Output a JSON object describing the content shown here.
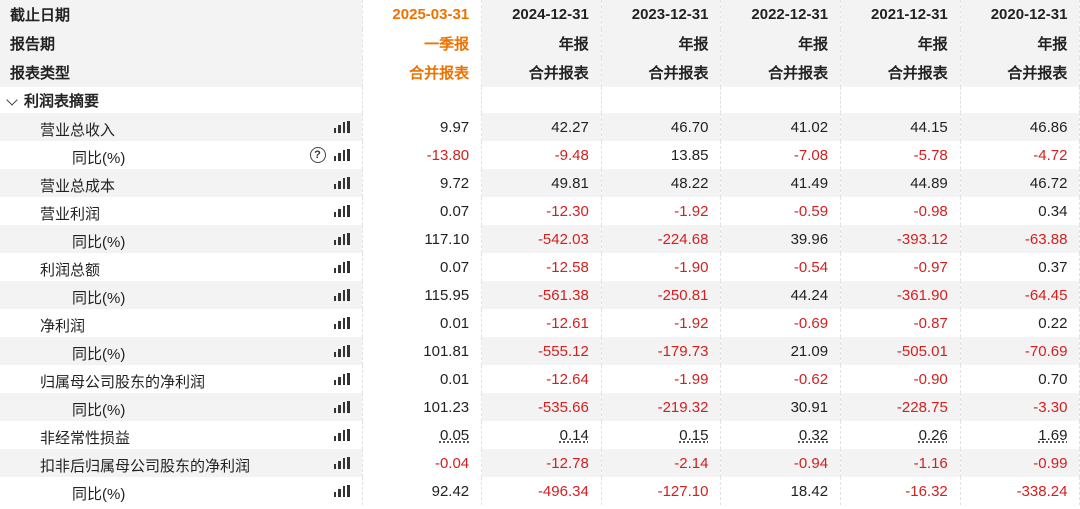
{
  "header": {
    "rows": [
      {
        "label": "截止日期",
        "values": [
          "2025-03-31",
          "2024-12-31",
          "2023-12-31",
          "2022-12-31",
          "2021-12-31",
          "2020-12-31"
        ]
      },
      {
        "label": "报告期",
        "values": [
          "一季报",
          "年报",
          "年报",
          "年报",
          "年报",
          "年报"
        ]
      },
      {
        "label": "报表类型",
        "values": [
          "合并报表",
          "合并报表",
          "合并报表",
          "合并报表",
          "合并报表",
          "合并报表"
        ]
      }
    ],
    "highlight_color": "#ee7200"
  },
  "section": {
    "title": "利润表摘要",
    "expanded": true
  },
  "rows": [
    {
      "label": "营业总收入",
      "level": 1,
      "help": false,
      "values": [
        "9.97",
        "42.27",
        "46.70",
        "41.02",
        "44.15",
        "46.86"
      ]
    },
    {
      "label": "同比(%)",
      "level": 2,
      "help": true,
      "values": [
        "-13.80",
        "-9.48",
        "13.85",
        "-7.08",
        "-5.78",
        "-4.72"
      ]
    },
    {
      "label": "营业总成本",
      "level": 1,
      "help": false,
      "values": [
        "9.72",
        "49.81",
        "48.22",
        "41.49",
        "44.89",
        "46.72"
      ]
    },
    {
      "label": "营业利润",
      "level": 1,
      "help": false,
      "values": [
        "0.07",
        "-12.30",
        "-1.92",
        "-0.59",
        "-0.98",
        "0.34"
      ]
    },
    {
      "label": "同比(%)",
      "level": 2,
      "help": false,
      "values": [
        "117.10",
        "-542.03",
        "-224.68",
        "39.96",
        "-393.12",
        "-63.88"
      ]
    },
    {
      "label": "利润总额",
      "level": 1,
      "help": false,
      "values": [
        "0.07",
        "-12.58",
        "-1.90",
        "-0.54",
        "-0.97",
        "0.37"
      ]
    },
    {
      "label": "同比(%)",
      "level": 2,
      "help": false,
      "values": [
        "115.95",
        "-561.38",
        "-250.81",
        "44.24",
        "-361.90",
        "-64.45"
      ]
    },
    {
      "label": "净利润",
      "level": 1,
      "help": false,
      "values": [
        "0.01",
        "-12.61",
        "-1.92",
        "-0.69",
        "-0.87",
        "0.22"
      ]
    },
    {
      "label": "同比(%)",
      "level": 2,
      "help": false,
      "values": [
        "101.81",
        "-555.12",
        "-179.73",
        "21.09",
        "-505.01",
        "-70.69"
      ]
    },
    {
      "label": "归属母公司股东的净利润",
      "level": 1,
      "help": false,
      "values": [
        "0.01",
        "-12.64",
        "-1.99",
        "-0.62",
        "-0.90",
        "0.70"
      ]
    },
    {
      "label": "同比(%)",
      "level": 2,
      "help": false,
      "values": [
        "101.23",
        "-535.66",
        "-219.32",
        "30.91",
        "-228.75",
        "-3.30"
      ]
    },
    {
      "label": "非经常性损益",
      "level": 1,
      "help": false,
      "underline": true,
      "values": [
        "0.05",
        "0.14",
        "0.15",
        "0.32",
        "0.26",
        "1.69"
      ]
    },
    {
      "label": "扣非后归属母公司股东的净利润",
      "level": 1,
      "help": false,
      "values": [
        "-0.04",
        "-12.78",
        "-2.14",
        "-0.94",
        "-1.16",
        "-0.99"
      ]
    },
    {
      "label": "同比(%)",
      "level": 2,
      "help": false,
      "values": [
        "92.42",
        "-496.34",
        "-127.10",
        "18.42",
        "-16.32",
        "-338.24"
      ]
    }
  ],
  "colors": {
    "negative": "#d3201f",
    "positive": "#222222",
    "row_shade": "#f3f3f3"
  },
  "icons": {
    "chart": "bar-chart-icon",
    "help": "question-circle-icon",
    "collapse": "chevron-down-icon"
  }
}
